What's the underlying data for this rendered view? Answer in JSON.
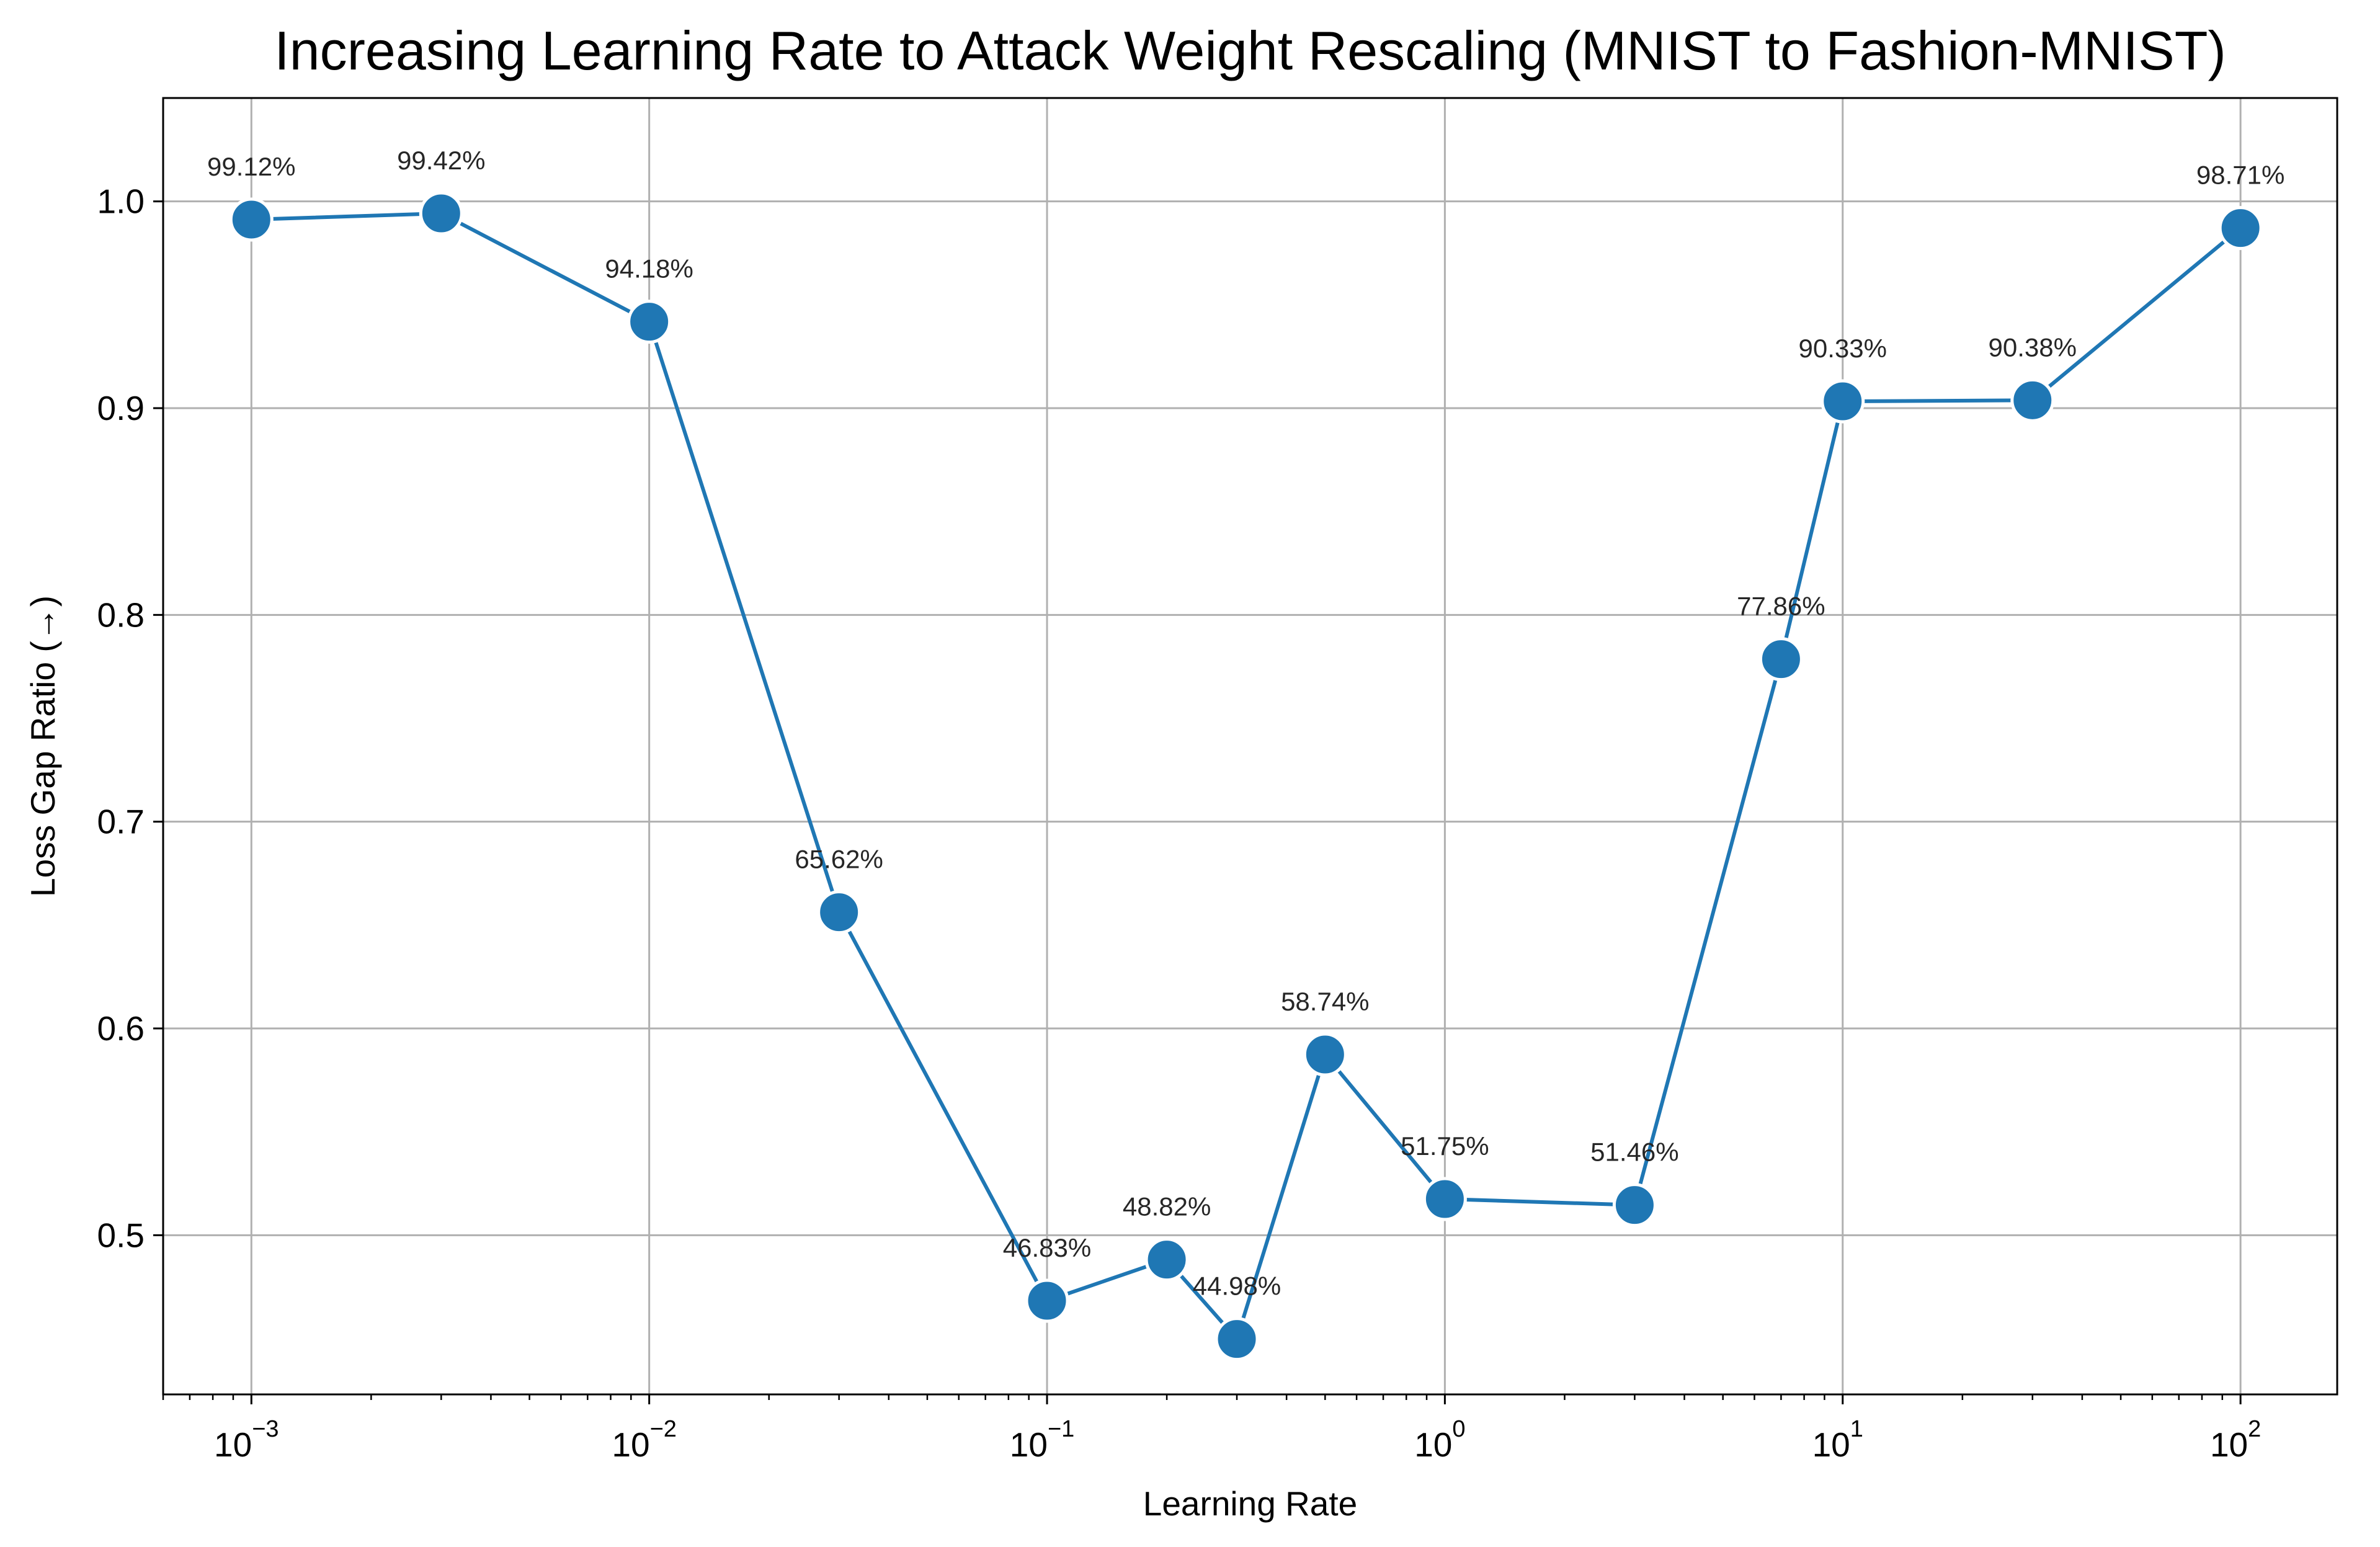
{
  "chart_data": {
    "type": "line",
    "title": "Increasing Learning Rate to Attack Weight Rescaling (MNIST to Fashion-MNIST)",
    "xlabel": "Learning Rate",
    "ylabel": "Loss Gap Ratio (→)",
    "xscale": "log",
    "xlim": [
      0.0006,
      175
    ],
    "ylim": [
      0.423,
      1.05
    ],
    "grid": true,
    "legend": "none",
    "colors": {
      "line": "#1f77b4",
      "marker": "#1f77b4",
      "marker_edge": "#ffffff",
      "grid": "#b0b0b0",
      "axes": "#000000",
      "label_text": "#262626"
    },
    "x_ticks": [
      {
        "value": 0.001,
        "base": "10",
        "exp": "−3"
      },
      {
        "value": 0.01,
        "base": "10",
        "exp": "−2"
      },
      {
        "value": 0.1,
        "base": "10",
        "exp": "−1"
      },
      {
        "value": 1,
        "base": "10",
        "exp": "0"
      },
      {
        "value": 10,
        "base": "10",
        "exp": "1"
      },
      {
        "value": 100,
        "base": "10",
        "exp": "2"
      }
    ],
    "y_ticks": [
      {
        "value": 0.5,
        "label": "0.5"
      },
      {
        "value": 0.6,
        "label": "0.6"
      },
      {
        "value": 0.7,
        "label": "0.7"
      },
      {
        "value": 0.8,
        "label": "0.8"
      },
      {
        "value": 0.9,
        "label": "0.9"
      },
      {
        "value": 1.0,
        "label": "1.0"
      }
    ],
    "series": [
      {
        "x": [
          0.001,
          0.003,
          0.01,
          0.03,
          0.1,
          0.2,
          0.3,
          0.5,
          1,
          3,
          7,
          10,
          30,
          100
        ],
        "y": [
          0.9912,
          0.9942,
          0.9418,
          0.6562,
          0.4683,
          0.4882,
          0.4498,
          0.5874,
          0.5175,
          0.5146,
          0.7786,
          0.9033,
          0.9038,
          0.9871
        ],
        "labels": [
          "99.12%",
          "99.42%",
          "94.18%",
          "65.62%",
          "46.83%",
          "48.82%",
          "44.98%",
          "58.74%",
          "51.75%",
          "51.46%",
          "77.86%",
          "90.33%",
          "90.38%",
          "98.71%"
        ]
      }
    ]
  }
}
